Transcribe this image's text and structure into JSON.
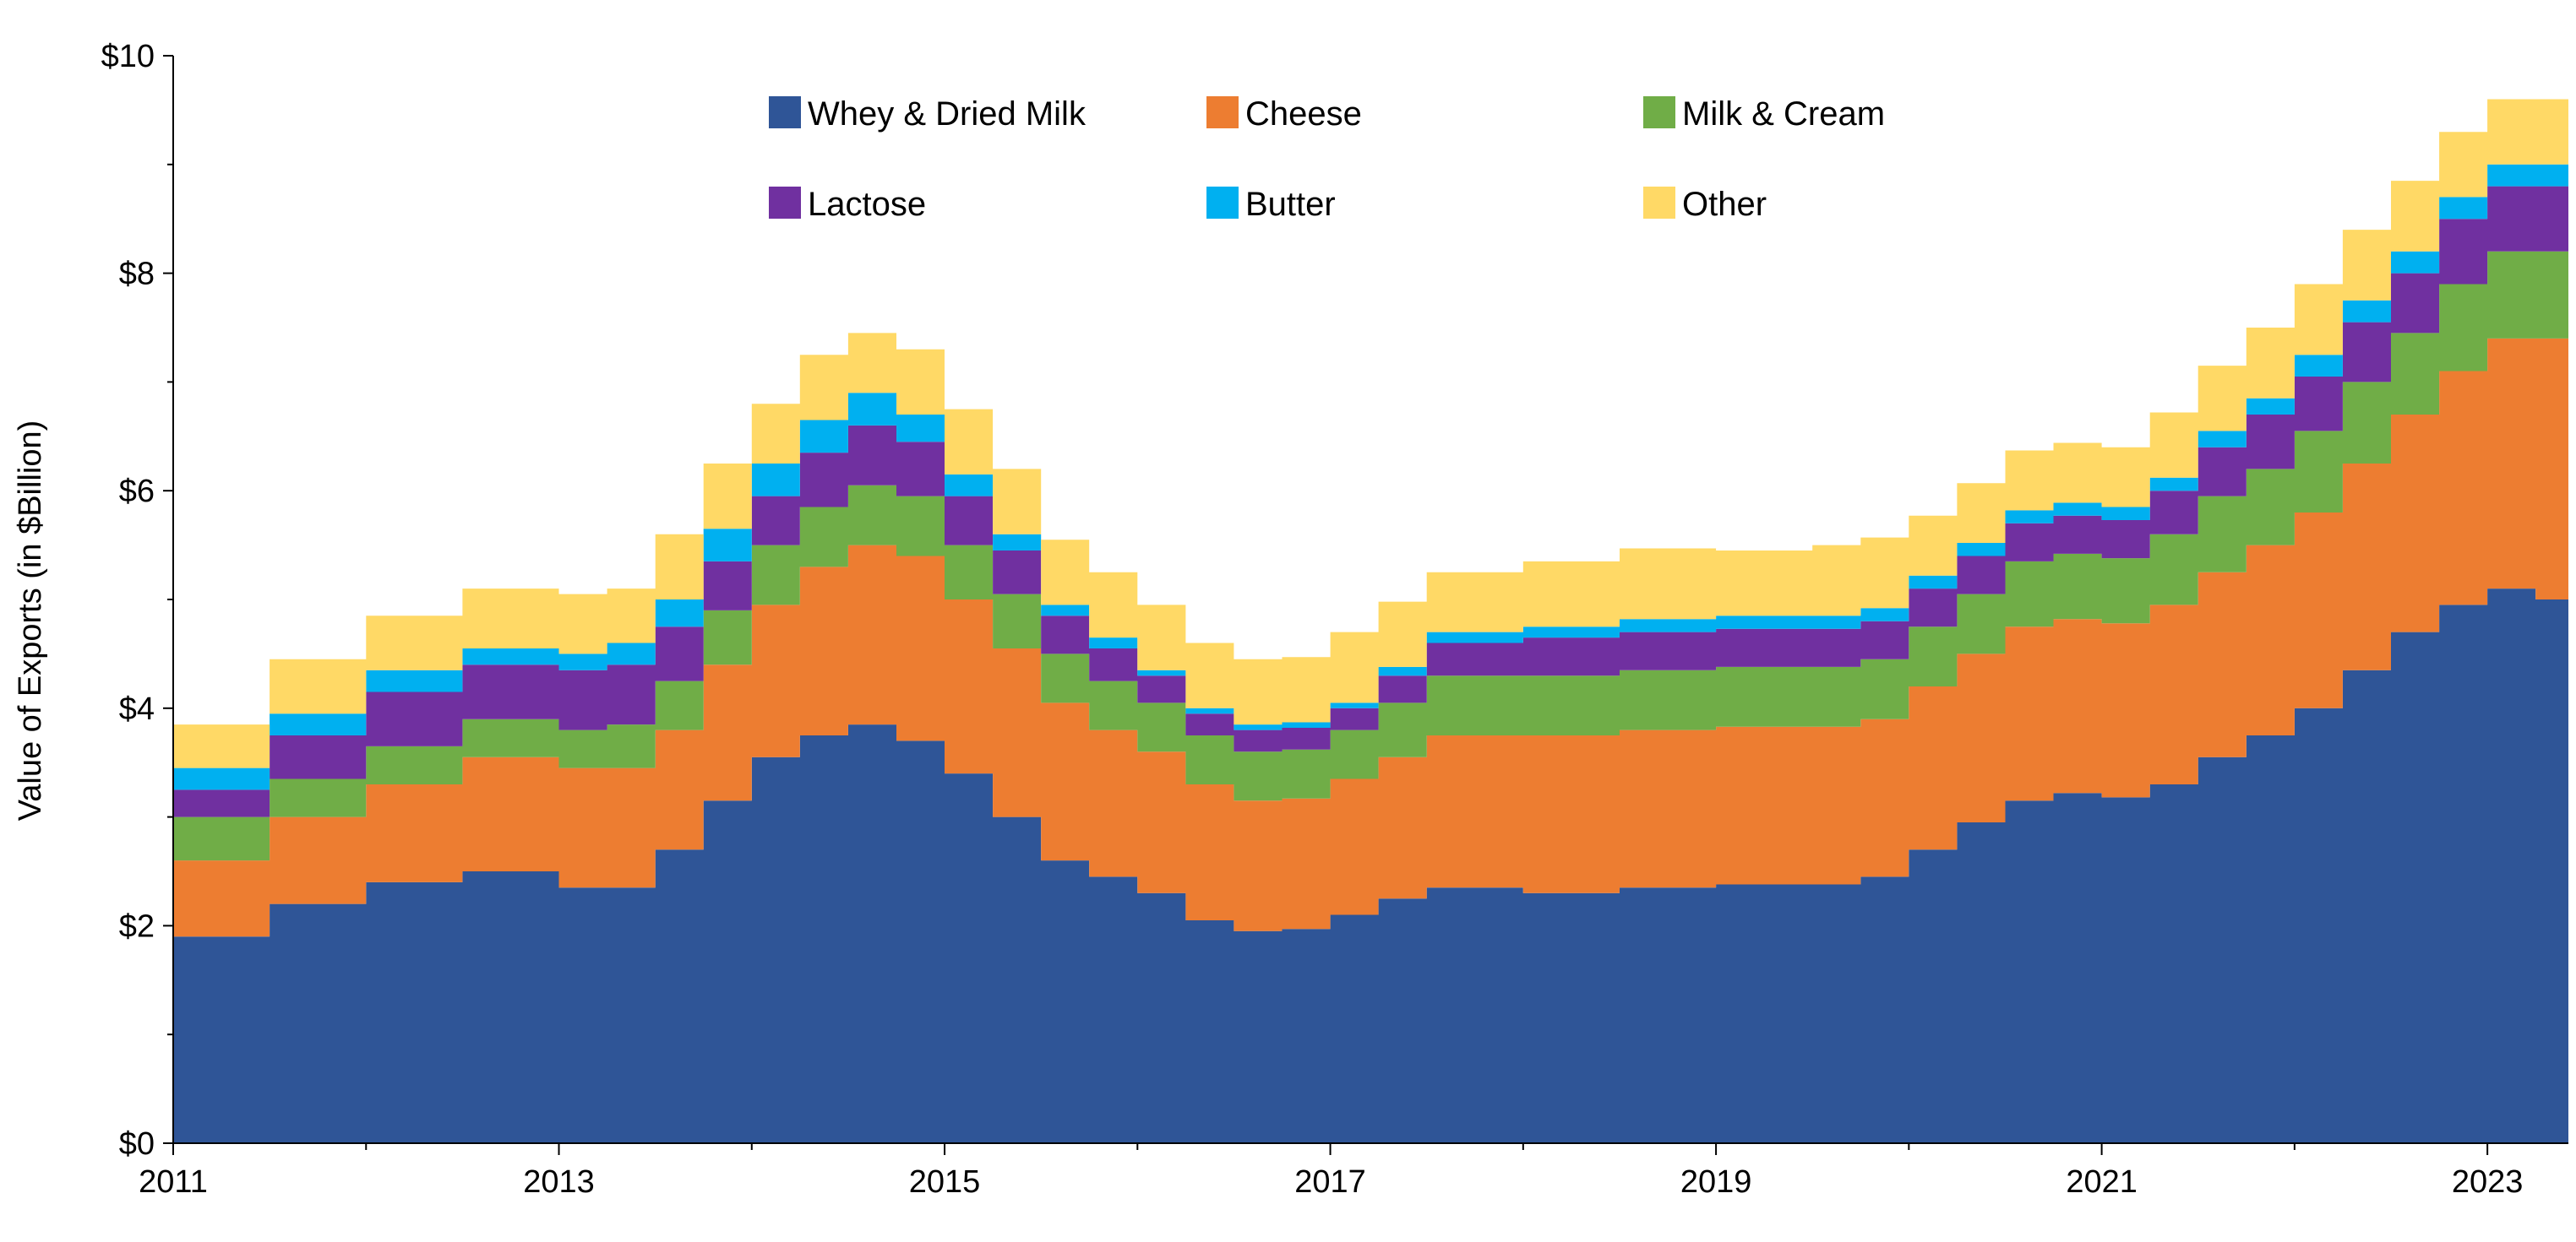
{
  "chart_data": {
    "type": "area",
    "stacked": true,
    "step": true,
    "ylabel": "Value of Exports (in $Billion)",
    "xlabel": "",
    "ylim": [
      0,
      10
    ],
    "xlim": [
      2011,
      2023.42
    ],
    "grid": false,
    "legend_placement": "top-center",
    "y_ticks": [
      0,
      2,
      4,
      6,
      8,
      10
    ],
    "y_tick_labels": [
      "$0",
      "$2",
      "$4",
      "$6",
      "$8",
      "$10"
    ],
    "x_ticks": [
      2011,
      2013,
      2015,
      2017,
      2019,
      2021,
      2023
    ],
    "x_tick_labels": [
      "2011",
      "2013",
      "2015",
      "2017",
      "2019",
      "2021",
      "2023"
    ],
    "x": [
      2011.0,
      2011.5,
      2012.0,
      2012.5,
      2013.0,
      2013.25,
      2013.5,
      2013.75,
      2014.0,
      2014.25,
      2014.5,
      2014.75,
      2015.0,
      2015.25,
      2015.5,
      2015.75,
      2016.0,
      2016.25,
      2016.5,
      2016.75,
      2017.0,
      2017.25,
      2017.5,
      2018.0,
      2018.5,
      2019.0,
      2019.5,
      2019.75,
      2020.0,
      2020.25,
      2020.5,
      2020.75,
      2021.0,
      2021.25,
      2021.5,
      2021.75,
      2022.0,
      2022.25,
      2022.5,
      2022.75,
      2023.0,
      2023.25,
      2023.42
    ],
    "series": [
      {
        "name": "Whey & Dried Milk",
        "color": "#2F5597",
        "values": [
          1.9,
          2.2,
          2.4,
          2.5,
          2.35,
          2.35,
          2.7,
          3.15,
          3.55,
          3.75,
          3.85,
          3.7,
          3.4,
          3.0,
          2.6,
          2.45,
          2.3,
          2.05,
          1.95,
          1.97,
          2.1,
          2.25,
          2.35,
          2.3,
          2.35,
          2.38,
          2.38,
          2.45,
          2.7,
          2.95,
          3.15,
          3.22,
          3.18,
          3.3,
          3.55,
          3.75,
          4.0,
          4.35,
          4.7,
          4.95,
          5.1,
          5.0,
          4.75
        ]
      },
      {
        "name": "Cheese",
        "color": "#ED7D31",
        "values": [
          0.7,
          0.8,
          0.9,
          1.05,
          1.1,
          1.1,
          1.1,
          1.25,
          1.4,
          1.55,
          1.65,
          1.7,
          1.6,
          1.55,
          1.45,
          1.35,
          1.3,
          1.25,
          1.2,
          1.2,
          1.25,
          1.3,
          1.4,
          1.45,
          1.45,
          1.45,
          1.45,
          1.45,
          1.5,
          1.55,
          1.6,
          1.6,
          1.6,
          1.65,
          1.7,
          1.75,
          1.8,
          1.9,
          2.0,
          2.15,
          2.3,
          2.4,
          2.3
        ]
      },
      {
        "name": "Milk & Cream",
        "color": "#70AD47",
        "values": [
          0.4,
          0.35,
          0.35,
          0.35,
          0.35,
          0.4,
          0.45,
          0.5,
          0.55,
          0.55,
          0.55,
          0.55,
          0.5,
          0.5,
          0.45,
          0.45,
          0.45,
          0.45,
          0.45,
          0.45,
          0.45,
          0.5,
          0.55,
          0.55,
          0.55,
          0.55,
          0.55,
          0.55,
          0.55,
          0.55,
          0.6,
          0.6,
          0.6,
          0.65,
          0.7,
          0.7,
          0.75,
          0.75,
          0.75,
          0.8,
          0.8,
          0.8,
          0.8
        ]
      },
      {
        "name": "Lactose",
        "color": "#7030A0",
        "values": [
          0.25,
          0.4,
          0.5,
          0.5,
          0.55,
          0.55,
          0.5,
          0.45,
          0.45,
          0.5,
          0.55,
          0.5,
          0.45,
          0.4,
          0.35,
          0.3,
          0.25,
          0.2,
          0.2,
          0.2,
          0.2,
          0.25,
          0.3,
          0.35,
          0.35,
          0.35,
          0.35,
          0.35,
          0.35,
          0.35,
          0.35,
          0.35,
          0.35,
          0.4,
          0.45,
          0.5,
          0.5,
          0.55,
          0.55,
          0.6,
          0.6,
          0.6,
          0.6
        ]
      },
      {
        "name": "Butter",
        "color": "#00B0F0",
        "values": [
          0.2,
          0.2,
          0.2,
          0.15,
          0.15,
          0.2,
          0.25,
          0.3,
          0.3,
          0.3,
          0.3,
          0.25,
          0.2,
          0.15,
          0.1,
          0.1,
          0.05,
          0.05,
          0.05,
          0.05,
          0.05,
          0.08,
          0.1,
          0.1,
          0.12,
          0.12,
          0.12,
          0.12,
          0.12,
          0.12,
          0.12,
          0.12,
          0.12,
          0.12,
          0.15,
          0.15,
          0.2,
          0.2,
          0.2,
          0.2,
          0.2,
          0.2,
          0.2
        ]
      },
      {
        "name": "Other",
        "color": "#FFD966",
        "values": [
          0.4,
          0.5,
          0.5,
          0.55,
          0.55,
          0.5,
          0.6,
          0.6,
          0.55,
          0.6,
          0.55,
          0.6,
          0.6,
          0.6,
          0.6,
          0.6,
          0.6,
          0.6,
          0.6,
          0.6,
          0.65,
          0.6,
          0.55,
          0.6,
          0.65,
          0.6,
          0.65,
          0.65,
          0.55,
          0.55,
          0.55,
          0.55,
          0.55,
          0.6,
          0.6,
          0.65,
          0.65,
          0.65,
          0.65,
          0.6,
          0.6,
          0.6,
          0.6
        ]
      }
    ]
  }
}
